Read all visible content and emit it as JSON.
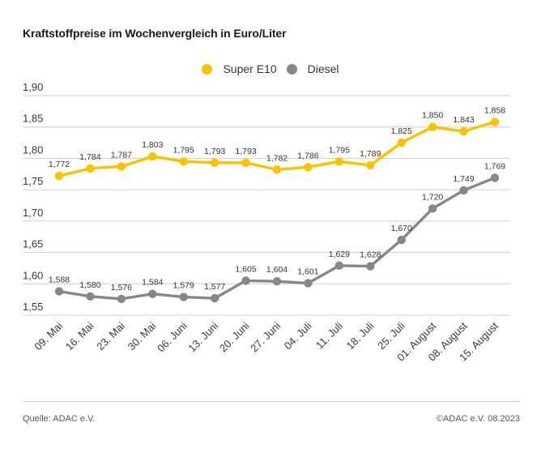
{
  "title": "Kraftstoffpreise im Wochenvergleich in Euro/Liter",
  "footer": {
    "source": "Quelle: ADAC e.V.",
    "copyright": "©ADAC e.V. 08.2023"
  },
  "colors": {
    "super_e10": "#fcc200",
    "diesel": "#878787",
    "gridline": "#cfcfcf",
    "tick_text": "#383838",
    "data_label_text": "#333333"
  },
  "chart_data": {
    "type": "line",
    "title": "Kraftstoffpreise im Wochenvergleich in Euro/Liter",
    "categories": [
      "09. Mai",
      "16. Mai",
      "23. Mai",
      "30. Mai",
      "06. Juni",
      "13. Juni",
      "20. Juni",
      "27. Juni",
      "04. Juli",
      "11. Juli",
      "18. Juli",
      "25. Juli",
      "01. August",
      "08. August",
      "15. August"
    ],
    "series": [
      {
        "name": "Super E10",
        "color": "#fcc200",
        "values": [
          1.772,
          1.784,
          1.787,
          1.803,
          1.795,
          1.793,
          1.793,
          1.782,
          1.786,
          1.795,
          1.789,
          1.825,
          1.85,
          1.843,
          1.858
        ]
      },
      {
        "name": "Diesel",
        "color": "#878787",
        "values": [
          1.588,
          1.58,
          1.576,
          1.584,
          1.579,
          1.577,
          1.605,
          1.604,
          1.601,
          1.629,
          1.628,
          1.67,
          1.72,
          1.749,
          1.769
        ]
      }
    ],
    "xlabel": "",
    "ylabel": "",
    "unit": "Euro/Liter",
    "ylim": [
      1.55,
      1.9
    ],
    "ytick_step": 0.05,
    "ytick_labels": [
      "1,55",
      "1,60",
      "1,65",
      "1,70",
      "1,75",
      "1,80",
      "1,85",
      "1,90"
    ],
    "grid": true,
    "legend_position": "top-center",
    "decimal_separator": ",",
    "data_labels": true
  }
}
